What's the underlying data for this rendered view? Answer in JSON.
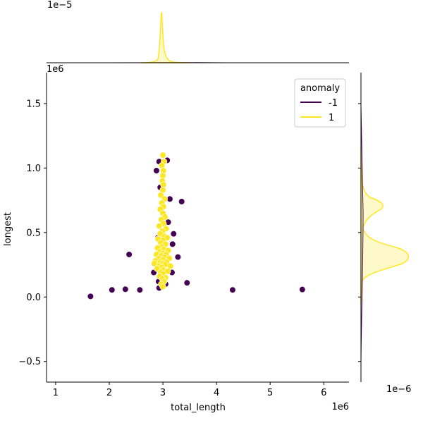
{
  "chart_data": {
    "type": "scatter",
    "subtype": "jointplot-with-marginal-kde",
    "xlabel": "total_length",
    "ylabel": "longest",
    "x_offset_text": "1e6",
    "y_offset_text": "1e6",
    "xlim": [
      0.83,
      6.47
    ],
    "ylim": [
      -0.66,
      1.74
    ],
    "x_ticks": [
      1,
      2,
      3,
      4,
      5,
      6
    ],
    "x_tick_labels": [
      "1",
      "2",
      "3",
      "4",
      "5",
      "6"
    ],
    "y_ticks": [
      -0.5,
      0.0,
      0.5,
      1.0,
      1.5
    ],
    "y_tick_labels": [
      "−0.5",
      "0.0",
      "0.5",
      "1.0",
      "1.5"
    ],
    "top_marginal_offset_text": "1e−5",
    "right_marginal_offset_text": "1e−6",
    "legend": {
      "title": "anomaly",
      "position": "top-right",
      "entries": [
        {
          "label": "-1",
          "color": "#440154"
        },
        {
          "label": "1",
          "color": "#fde725"
        }
      ]
    },
    "series": [
      {
        "name": "-1",
        "color": "#440154",
        "points": [
          [
            1.65,
            0.005
          ],
          [
            2.05,
            0.055
          ],
          [
            2.3,
            0.06
          ],
          [
            2.57,
            0.055
          ],
          [
            2.37,
            0.33
          ],
          [
            3.45,
            0.11
          ],
          [
            4.3,
            0.055
          ],
          [
            5.6,
            0.058
          ],
          [
            3.35,
            0.74
          ],
          [
            3.13,
            0.76
          ],
          [
            3.2,
            0.49
          ],
          [
            3.18,
            0.41
          ],
          [
            3.28,
            0.31
          ],
          [
            3.17,
            0.19
          ],
          [
            2.83,
            0.19
          ],
          [
            2.93,
            0.07
          ],
          [
            3.0,
            0.08
          ],
          [
            3.05,
            0.1
          ],
          [
            2.88,
            0.98
          ],
          [
            2.93,
            1.05
          ],
          [
            3.08,
            1.06
          ],
          [
            2.95,
            0.85
          ],
          [
            3.0,
            0.83
          ],
          [
            3.1,
            0.58
          ],
          [
            2.97,
            0.29
          ],
          [
            2.91,
            0.46
          ],
          [
            3.05,
            0.3
          ],
          [
            2.92,
            0.12
          ]
        ]
      },
      {
        "name": "1",
        "color": "#fde725",
        "points": [
          [
            3.0,
            1.1
          ],
          [
            3.02,
            1.05
          ],
          [
            2.98,
            1.02
          ],
          [
            3.01,
            0.98
          ],
          [
            3.0,
            0.94
          ],
          [
            2.99,
            0.9
          ],
          [
            3.01,
            0.87
          ],
          [
            3.0,
            0.83
          ],
          [
            2.96,
            0.79
          ],
          [
            3.03,
            0.76
          ],
          [
            2.98,
            0.73
          ],
          [
            3.01,
            0.7
          ],
          [
            2.95,
            0.68
          ],
          [
            3.0,
            0.65
          ],
          [
            3.04,
            0.62
          ],
          [
            2.97,
            0.6
          ],
          [
            3.01,
            0.57
          ],
          [
            2.93,
            0.55
          ],
          [
            3.06,
            0.53
          ],
          [
            2.99,
            0.51
          ],
          [
            2.95,
            0.49
          ],
          [
            3.03,
            0.47
          ],
          [
            3.08,
            0.46
          ],
          [
            2.91,
            0.45
          ],
          [
            3.0,
            0.44
          ],
          [
            2.96,
            0.42
          ],
          [
            3.05,
            0.41
          ],
          [
            2.98,
            0.39
          ],
          [
            2.9,
            0.38
          ],
          [
            3.02,
            0.37
          ],
          [
            3.1,
            0.36
          ],
          [
            2.94,
            0.35
          ],
          [
            3.0,
            0.34
          ],
          [
            3.06,
            0.33
          ],
          [
            2.88,
            0.33
          ],
          [
            2.97,
            0.32
          ],
          [
            3.03,
            0.31
          ],
          [
            2.92,
            0.3
          ],
          [
            3.12,
            0.3
          ],
          [
            3.0,
            0.29
          ],
          [
            2.86,
            0.28
          ],
          [
            2.95,
            0.27
          ],
          [
            3.07,
            0.27
          ],
          [
            2.99,
            0.26
          ],
          [
            2.84,
            0.26
          ],
          [
            3.04,
            0.25
          ],
          [
            2.93,
            0.24
          ],
          [
            3.14,
            0.24
          ],
          [
            2.98,
            0.23
          ],
          [
            2.89,
            0.22
          ],
          [
            3.01,
            0.21
          ],
          [
            3.09,
            0.2
          ],
          [
            2.96,
            0.19
          ],
          [
            3.0,
            0.18
          ],
          [
            2.94,
            0.16
          ],
          [
            3.05,
            0.15
          ],
          [
            2.99,
            0.14
          ],
          [
            3.02,
            0.12
          ],
          [
            2.97,
            0.1
          ],
          [
            3.0,
            0.08
          ]
        ]
      }
    ]
  }
}
